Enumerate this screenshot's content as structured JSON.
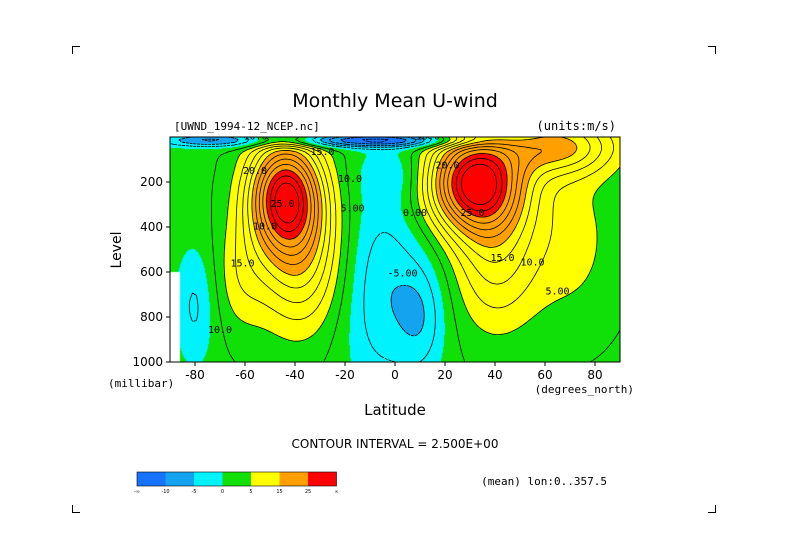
{
  "chart_data": {
    "type": "heatmap",
    "title": "Monthly Mean U-wind",
    "dataset_label": "[UWND_1994-12_NCEP.nc]",
    "units_label": "(units:m/s)",
    "xlabel": "Latitude",
    "x_units": "(degrees_north)",
    "ylabel": "Level",
    "y_units": "(millibar)",
    "xlim": [
      -90,
      90
    ],
    "ylim": [
      1000,
      0
    ],
    "x_ticks": [
      -80,
      -60,
      -40,
      -20,
      0,
      20,
      40,
      60,
      80
    ],
    "y_ticks": [
      200,
      400,
      600,
      800,
      1000
    ],
    "contour_interval_text": "CONTOUR INTERVAL = 2.500E+00",
    "footer_note": "(mean) lon:0..357.5",
    "colorbar": {
      "colors": [
        "#1672ff",
        "#14a3ee",
        "#00f2fd",
        "#10df08",
        "#ffff00",
        "#ff9f00",
        "#ff0000"
      ],
      "tick_labels": [
        "-∞",
        "-10",
        "-5",
        "0",
        "5",
        "15",
        "25",
        "∞"
      ]
    },
    "contour_labels": [
      {
        "text": "-10.0",
        "x": -57,
        "y": 10
      },
      {
        "text": "-10.0",
        "x": 12,
        "y": 10
      },
      {
        "text": "15.0",
        "x": -29,
        "y": 80
      },
      {
        "text": "20.0",
        "x": -56,
        "y": 165
      },
      {
        "text": "10.0",
        "x": -18,
        "y": 200
      },
      {
        "text": "5.00",
        "x": -17,
        "y": 330
      },
      {
        "text": "0.00",
        "x": 8,
        "y": 350
      },
      {
        "text": "20.0",
        "x": 21,
        "y": 140
      },
      {
        "text": "10.0",
        "x": -52,
        "y": 410
      },
      {
        "text": "15.0",
        "x": -61,
        "y": 575
      },
      {
        "text": "-5.00",
        "x": 3,
        "y": 620
      },
      {
        "text": "15.0",
        "x": 43,
        "y": 550
      },
      {
        "text": "10.0",
        "x": 55,
        "y": 570
      },
      {
        "text": "5.00",
        "x": 65,
        "y": 700
      },
      {
        "text": "10.0",
        "x": -70,
        "y": 870
      },
      {
        "text": "25.0",
        "x": 31,
        "y": 350
      },
      {
        "text": "25.0",
        "x": -45,
        "y": 310
      }
    ],
    "field_features": {
      "southern_jet_core": {
        "lat": -44,
        "level": 260,
        "max": 27.5
      },
      "northern_jet_core": {
        "lat": 32,
        "level": 200,
        "max": 30
      },
      "polar_jet_top": {
        "lat": 65,
        "level": 20,
        "max": 17
      }
    }
  }
}
